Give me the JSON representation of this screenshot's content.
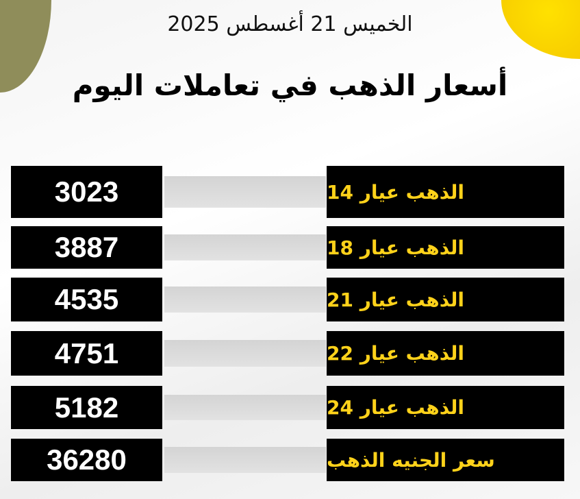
{
  "header": {
    "date": "الخميس 21 أغسطس 2025",
    "title": "أسعار الذهب في تعاملات اليوم"
  },
  "colors": {
    "label_text": "#ffd21a",
    "box": "#000000",
    "accent_sun": "#ffe100"
  },
  "rows": [
    {
      "label": "الذهب عيار 14",
      "price": "3023"
    },
    {
      "label": "الذهب عيار 18",
      "price": "3887"
    },
    {
      "label": "الذهب عيار 21",
      "price": "4535"
    },
    {
      "label": "الذهب عيار 22",
      "price": "4751"
    },
    {
      "label": "الذهب عيار 24",
      "price": "5182"
    },
    {
      "label": "سعر الجنيه الذهب",
      "price": "36280"
    }
  ]
}
